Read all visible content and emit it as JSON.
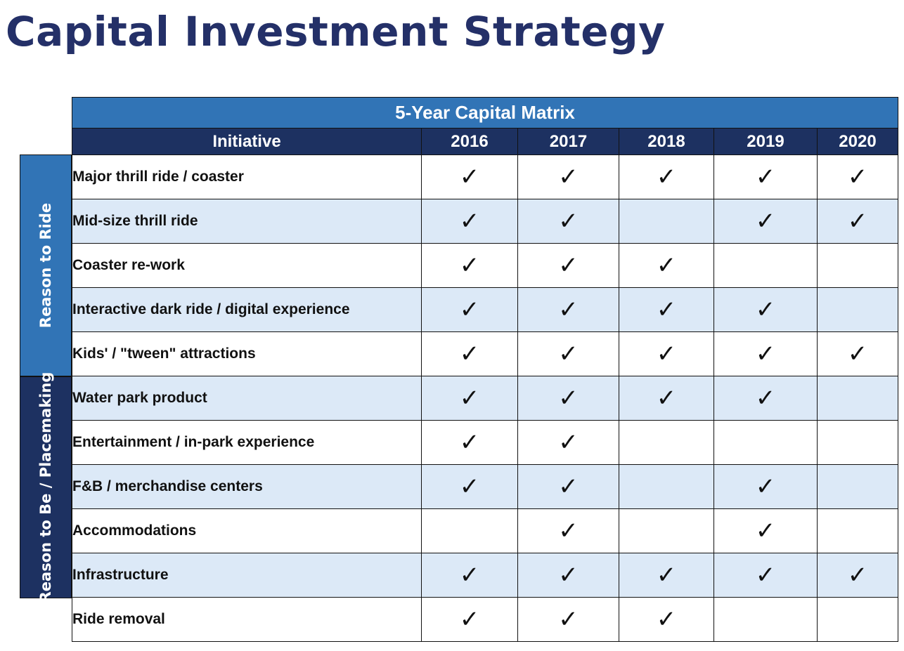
{
  "page": {
    "title": "Capital Investment Strategy"
  },
  "groups": {
    "reason_to_ride": "Reason to Ride",
    "reason_to_be": "Reason to Be / Placemaking"
  },
  "matrix": {
    "title": "5-Year Capital Matrix",
    "column_header": "Initiative",
    "years": [
      "2016",
      "2017",
      "2018",
      "2019",
      "2020"
    ],
    "check_symbol": "✓",
    "rows": [
      {
        "label": "Major thrill ride / coaster",
        "checks": [
          true,
          true,
          true,
          true,
          true
        ]
      },
      {
        "label": "Mid-size thrill ride",
        "checks": [
          true,
          true,
          false,
          true,
          true
        ]
      },
      {
        "label": "Coaster re-work",
        "checks": [
          true,
          true,
          true,
          false,
          false
        ]
      },
      {
        "label": "Interactive dark ride / digital experience",
        "checks": [
          true,
          true,
          true,
          true,
          false
        ]
      },
      {
        "label": "Kids' / \"tween\" attractions",
        "checks": [
          true,
          true,
          true,
          true,
          true
        ]
      },
      {
        "label": "Water park product",
        "checks": [
          true,
          true,
          true,
          true,
          false
        ]
      },
      {
        "label": "Entertainment / in-park experience",
        "checks": [
          true,
          true,
          false,
          false,
          false
        ]
      },
      {
        "label": "F&B / merchandise centers",
        "checks": [
          true,
          true,
          false,
          true,
          false
        ]
      },
      {
        "label": "Accommodations",
        "checks": [
          false,
          true,
          false,
          true,
          false
        ]
      },
      {
        "label": "Infrastructure",
        "checks": [
          true,
          true,
          true,
          true,
          true
        ]
      },
      {
        "label": "Ride removal",
        "checks": [
          true,
          true,
          true,
          false,
          false
        ]
      }
    ]
  }
}
